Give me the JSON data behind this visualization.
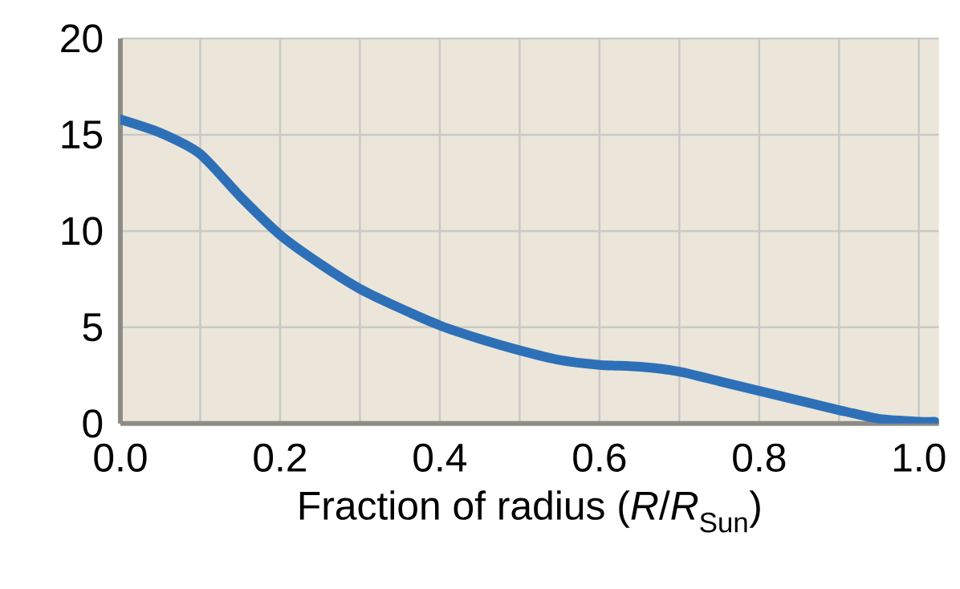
{
  "chart_data": {
    "type": "line",
    "xlabel": "Fraction of radius (*R*/*R*$_{Sun}$)",
    "x": [
      0,
      0.05,
      0.1,
      0.15,
      0.2,
      0.25,
      0.3,
      0.35,
      0.4,
      0.45,
      0.5,
      0.55,
      0.6,
      0.65,
      0.7,
      0.75,
      0.8,
      0.85,
      0.9,
      0.95,
      1.0,
      1.02
    ],
    "series": [
      {
        "color": "#2e70b8",
        "values": [
          15.8,
          15.1,
          14.0,
          11.8,
          9.8,
          8.3,
          7.0,
          6.0,
          5.1,
          4.4,
          3.8,
          3.3,
          3.05,
          2.95,
          2.7,
          2.2,
          1.7,
          1.2,
          0.7,
          0.25,
          0.1,
          0.1
        ]
      }
    ],
    "xlim": [
      0,
      1.025
    ],
    "ylim": [
      0,
      20
    ],
    "xticks": [
      {
        "value": 0,
        "label": "0.0"
      },
      {
        "value": 0.1,
        "label": null
      },
      {
        "value": 0.2,
        "label": "0.2"
      },
      {
        "value": 0.3,
        "label": null
      },
      {
        "value": 0.4,
        "label": "0.4"
      },
      {
        "value": 0.5,
        "label": null
      },
      {
        "value": 0.6,
        "label": "0.6"
      },
      {
        "value": 0.7,
        "label": null
      },
      {
        "value": 0.8,
        "label": "0.8"
      },
      {
        "value": 0.9,
        "label": null
      },
      {
        "value": 1.0,
        "label": "1.0"
      }
    ],
    "yticks": [
      0,
      5,
      10,
      15,
      20
    ],
    "grid": true
  }
}
